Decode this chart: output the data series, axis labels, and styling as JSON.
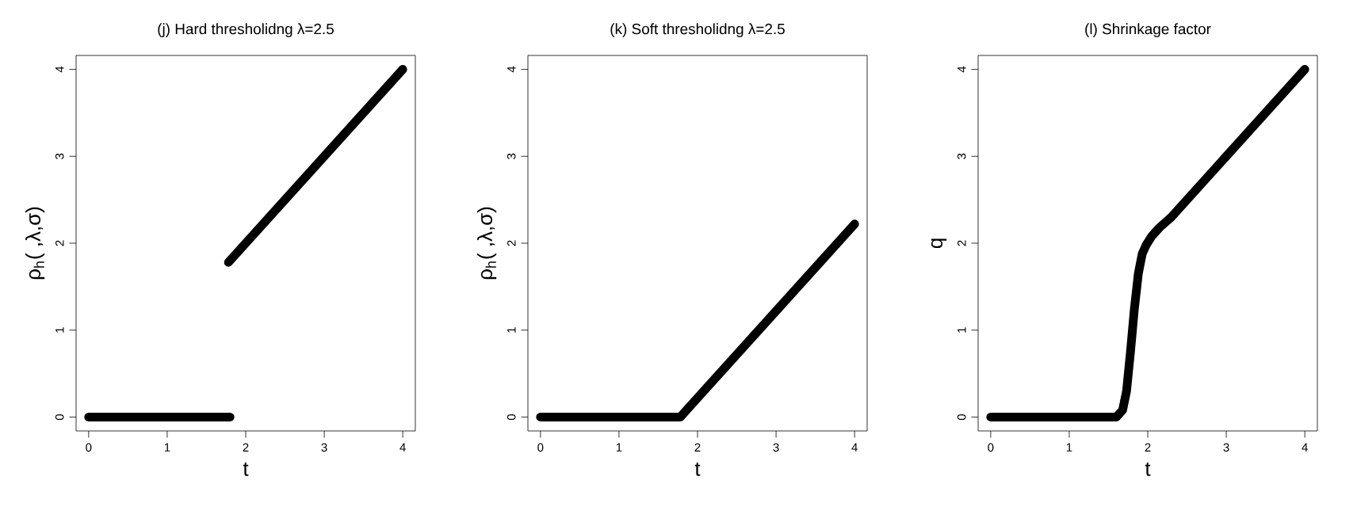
{
  "chart_data": [
    {
      "type": "line",
      "title": "(j) Hard thresholidng λ=2.5",
      "xlabel": "t",
      "ylabel": "ρ$_{h}$( ,λ,σ)",
      "xlim": [
        -0.16,
        4.16
      ],
      "ylim": [
        -0.16,
        4.16
      ],
      "xticks": [
        0,
        1,
        2,
        3,
        4
      ],
      "yticks": [
        0,
        1,
        2,
        3,
        4
      ],
      "series": [
        {
          "color": "#000000",
          "x": [
            0,
            1.8
          ],
          "values": [
            0,
            0
          ]
        },
        {
          "color": "#000000",
          "x": [
            1.78,
            4
          ],
          "values": [
            1.78,
            4
          ]
        }
      ]
    },
    {
      "type": "line",
      "title": "(k) Soft thresholidng λ=2.5",
      "xlabel": "t",
      "ylabel": "ρ$_{h}$( ,λ,σ)",
      "xlim": [
        -0.16,
        4.16
      ],
      "ylim": [
        -0.16,
        4.16
      ],
      "xticks": [
        0,
        1,
        2,
        3,
        4
      ],
      "yticks": [
        0,
        1,
        2,
        3,
        4
      ],
      "series": [
        {
          "color": "#000000",
          "x": [
            0,
            1.78,
            4
          ],
          "values": [
            0,
            0,
            2.22
          ]
        }
      ]
    },
    {
      "type": "line",
      "title": "(l) Shrinkage factor",
      "xlabel": "t",
      "ylabel": "q",
      "xlim": [
        -0.16,
        4.16
      ],
      "ylim": [
        -0.16,
        4.16
      ],
      "xticks": [
        0,
        1,
        2,
        3,
        4
      ],
      "yticks": [
        0,
        1,
        2,
        3,
        4
      ],
      "series": [
        {
          "color": "#000000",
          "x": [
            0,
            1.6,
            1.68,
            1.73,
            1.78,
            1.83,
            1.88,
            1.93,
            1.98,
            2.05,
            2.15,
            2.3,
            3,
            4
          ],
          "values": [
            0,
            0,
            0.08,
            0.3,
            0.75,
            1.25,
            1.65,
            1.88,
            1.98,
            2.08,
            2.18,
            2.3,
            3,
            4
          ]
        }
      ]
    }
  ]
}
